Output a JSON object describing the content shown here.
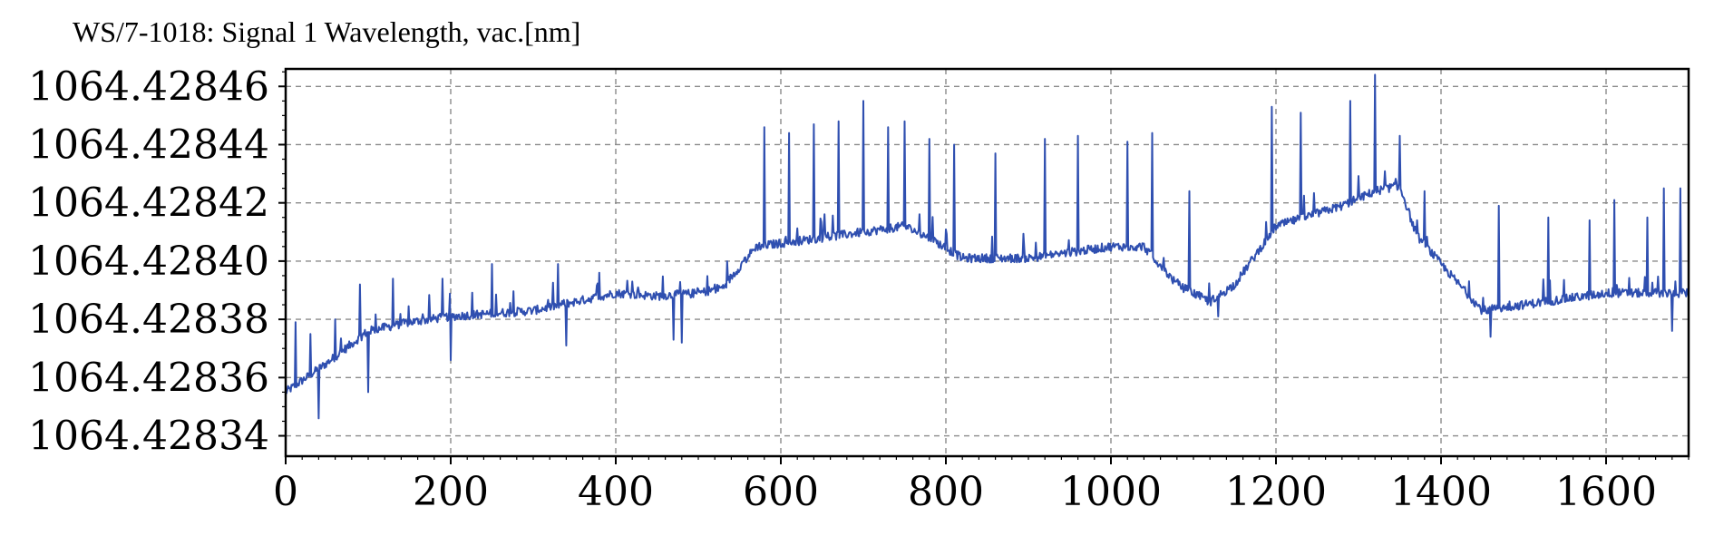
{
  "title": "WS/7-1018: Signal 1 Wavelength, vac.[nm]",
  "chart_data": {
    "type": "line",
    "title": "WS/7-1018: Signal 1 Wavelength, vac.[nm]",
    "xlabel": "",
    "ylabel": "",
    "xlim": [
      0,
      1700
    ],
    "ylim": [
      1064.428333,
      1064.428466
    ],
    "grid": true,
    "x_ticks": [
      0,
      200,
      400,
      600,
      800,
      1000,
      1200,
      1400,
      1600
    ],
    "x_tick_labels": [
      "0",
      "200",
      "400",
      "600",
      "800",
      "1000",
      "1200",
      "1400",
      "1600"
    ],
    "y_ticks": [
      1064.42834,
      1064.42836,
      1064.42838,
      1064.4284,
      1064.42842,
      1064.42844,
      1064.42846
    ],
    "y_tick_labels": [
      "1064.42834",
      "1064.42836",
      "1064.42838",
      "1064.42840",
      "1064.42842",
      "1064.42844",
      "1064.42846"
    ],
    "line_color": "#2f4fb0",
    "grid_color": "#8a8a8a",
    "series": [
      {
        "trend": [
          [
            0,
            1064.428355
          ],
          [
            50,
            1064.428365
          ],
          [
            100,
            1064.428376
          ],
          [
            150,
            1064.428379
          ],
          [
            200,
            1064.428381
          ],
          [
            300,
            1064.428383
          ],
          [
            400,
            1064.428389
          ],
          [
            450,
            1064.428388
          ],
          [
            500,
            1064.428389
          ],
          [
            530,
            1064.428391
          ],
          [
            570,
            1064.428405
          ],
          [
            650,
            1064.428408
          ],
          [
            750,
            1064.428412
          ],
          [
            780,
            1064.428408
          ],
          [
            820,
            1064.428401
          ],
          [
            900,
            1064.428401
          ],
          [
            1000,
            1064.428405
          ],
          [
            1040,
            1064.428405
          ],
          [
            1080,
            1064.428392
          ],
          [
            1120,
            1064.428386
          ],
          [
            1150,
            1064.428392
          ],
          [
            1200,
            1064.428412
          ],
          [
            1280,
            1064.428419
          ],
          [
            1320,
            1064.428424
          ],
          [
            1350,
            1064.428426
          ],
          [
            1370,
            1064.428409
          ],
          [
            1400,
            1064.428399
          ],
          [
            1450,
            1064.428383
          ],
          [
            1500,
            1064.428385
          ],
          [
            1600,
            1064.428389
          ],
          [
            1700,
            1064.428389
          ]
        ],
        "noise_amplitude": 1.5e-06,
        "spikes": [
          [
            12,
            1064.428379
          ],
          [
            30,
            1064.428375
          ],
          [
            60,
            1064.42838
          ],
          [
            90,
            1064.428392
          ],
          [
            130,
            1064.428394
          ],
          [
            190,
            1064.428394
          ],
          [
            250,
            1064.428399
          ],
          [
            330,
            1064.428399
          ],
          [
            380,
            1064.428396
          ],
          [
            420,
            1064.428393
          ],
          [
            520,
            1064.428392
          ],
          [
            555,
            1064.4284
          ],
          [
            580,
            1064.428446
          ],
          [
            610,
            1064.428444
          ],
          [
            640,
            1064.428447
          ],
          [
            670,
            1064.428448
          ],
          [
            700,
            1064.428455
          ],
          [
            730,
            1064.428446
          ],
          [
            750,
            1064.428448
          ],
          [
            780,
            1064.428442
          ],
          [
            810,
            1064.42844
          ],
          [
            860,
            1064.428437
          ],
          [
            920,
            1064.428442
          ],
          [
            960,
            1064.428443
          ],
          [
            1020,
            1064.428441
          ],
          [
            1050,
            1064.428444
          ],
          [
            1095,
            1064.428424
          ],
          [
            1195,
            1064.428453
          ],
          [
            1230,
            1064.428451
          ],
          [
            1290,
            1064.428455
          ],
          [
            1320,
            1064.428464
          ],
          [
            1350,
            1064.428443
          ],
          [
            1380,
            1064.428424
          ],
          [
            1470,
            1064.428419
          ],
          [
            1530,
            1064.428415
          ],
          [
            1580,
            1064.428414
          ],
          [
            1610,
            1064.428421
          ],
          [
            1650,
            1064.428415
          ],
          [
            1670,
            1064.428425
          ],
          [
            1690,
            1064.428425
          ]
        ],
        "dips": [
          [
            40,
            1064.428346
          ],
          [
            100,
            1064.428355
          ],
          [
            200,
            1064.428366
          ],
          [
            340,
            1064.428371
          ],
          [
            470,
            1064.428373
          ],
          [
            480,
            1064.428372
          ],
          [
            1130,
            1064.428381
          ],
          [
            1460,
            1064.428374
          ],
          [
            1680,
            1064.428376
          ]
        ]
      }
    ]
  }
}
